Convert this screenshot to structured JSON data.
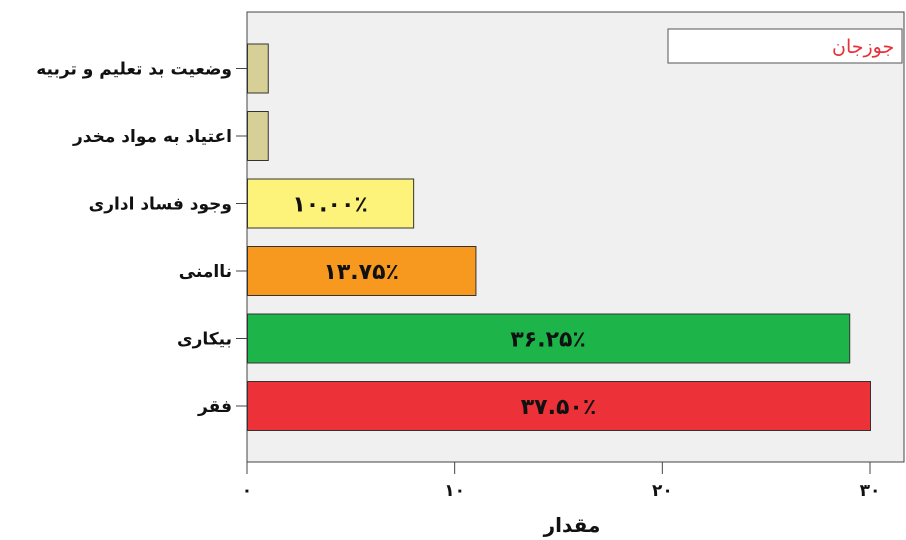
{
  "chart_data": {
    "type": "bar",
    "orientation": "horizontal",
    "categories": [
      "وضعیت بد تعلیم و تربیه",
      "اعتیاد به مواد مخدر",
      "وجود فساد اداری",
      "ناامنی",
      "بیکاری",
      "فقر"
    ],
    "values": [
      1,
      1,
      8,
      11,
      29,
      30
    ],
    "data_labels": [
      "",
      "",
      "۱۰.۰۰٪",
      "۱۳.۷۵٪",
      "۳۶.۲۵٪",
      "۳۷.۵۰٪"
    ],
    "bar_colors": [
      "#d6cf96",
      "#d6cf96",
      "#fdf37a",
      "#f7981f",
      "#1db54a",
      "#ec3138"
    ],
    "xlim": [
      0,
      30
    ],
    "xticks": [
      0,
      10,
      20,
      30
    ],
    "xtick_labels": [
      "۰",
      "۱۰",
      "۲۰",
      "۳۰"
    ],
    "xlabel": "مقدار",
    "ylabel": "",
    "legend": {
      "entries": [
        "جوزجان"
      ],
      "placement": "top-right",
      "text_color": "#e8303a"
    },
    "plot_background": "#f0f0f0",
    "grid": false
  }
}
